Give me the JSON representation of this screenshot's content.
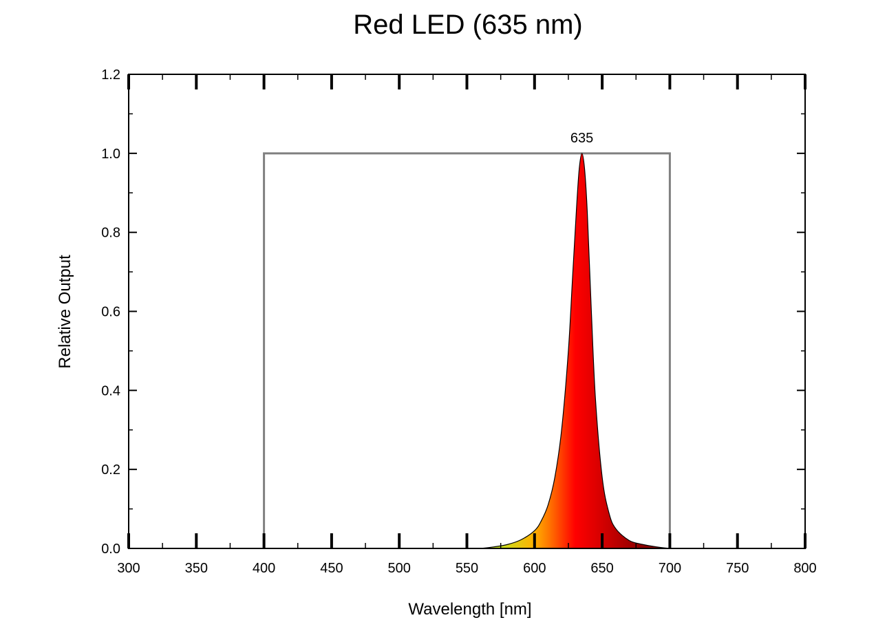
{
  "chart_data": {
    "type": "area",
    "title": "Red LED (635 nm)",
    "xlabel": "Wavelength [nm]",
    "ylabel": "Relative Output",
    "xlim": [
      300,
      800
    ],
    "ylim": [
      0,
      1.2
    ],
    "x_ticks": [
      "300",
      "350",
      "400",
      "450",
      "500",
      "550",
      "600",
      "650",
      "700",
      "750",
      "800"
    ],
    "y_ticks": [
      "0.0",
      "0.2",
      "0.4",
      "0.6",
      "0.8",
      "1.0",
      "1.2"
    ],
    "x_tick_values": [
      300,
      350,
      400,
      450,
      500,
      550,
      600,
      650,
      700,
      750,
      800
    ],
    "y_tick_values": [
      0,
      0.2,
      0.4,
      0.6,
      0.8,
      1.0,
      1.2
    ],
    "peak": {
      "x": 635,
      "y": 1.0,
      "label": "635"
    },
    "visible_range_box": {
      "x_start": 400,
      "x_end": 700,
      "y": 1.0,
      "color": "#808080"
    },
    "series": [
      {
        "x": [
          560,
          570,
          580,
          590,
          600,
          605,
          610,
          615,
          620,
          625,
          628,
          631,
          633,
          635,
          637,
          639,
          642,
          645,
          650,
          655,
          660,
          670,
          680,
          690,
          700
        ],
        "values": [
          0.0,
          0.004,
          0.01,
          0.022,
          0.045,
          0.07,
          0.11,
          0.18,
          0.3,
          0.5,
          0.68,
          0.86,
          0.96,
          1.0,
          0.96,
          0.85,
          0.6,
          0.38,
          0.18,
          0.09,
          0.05,
          0.02,
          0.01,
          0.004,
          0.0
        ]
      }
    ],
    "grid": false,
    "colors": {
      "fill_low": "#c8e020",
      "fill_mid": "#ff7a00",
      "fill_high": "#ff0000",
      "fill_tail": "#8b0000",
      "axis": "#000000"
    }
  }
}
